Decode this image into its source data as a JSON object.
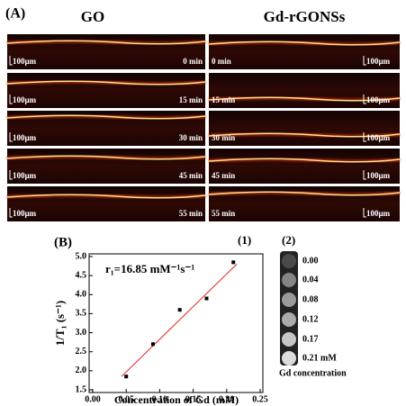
{
  "panel_a": {
    "label": "(A)",
    "scale_bar": "100µm",
    "columns": [
      {
        "title": "GO",
        "times": [
          "0 min",
          "15 min",
          "30 min",
          "45 min",
          "55 min"
        ]
      },
      {
        "title": "Gd-rGONSs",
        "times": [
          "0 min",
          "15 min",
          "30 min",
          "45 min",
          "55 min"
        ]
      }
    ]
  },
  "chart_data": {
    "type": "scatter",
    "label": "(B)",
    "sublabel": "(1)",
    "annotation": "r₁=16.85 mM⁻¹s⁻¹",
    "x_label": "Concentration of Gd (mM)",
    "y_label": "1/T₁ (s⁻¹)",
    "x": [
      0.05,
      0.09,
      0.13,
      0.17,
      0.21
    ],
    "values": [
      1.85,
      2.7,
      3.6,
      3.9,
      4.85
    ],
    "color": "#000000",
    "fit": {
      "x": [
        0.043,
        0.215
      ],
      "values": [
        1.85,
        4.8
      ],
      "color": "#e02020"
    },
    "xlim": [
      0,
      0.25
    ],
    "ylim": [
      1.5,
      5.0
    ],
    "xticks": [
      {
        "value": 0,
        "label": "0.00"
      },
      {
        "value": 0.05,
        "label": "0.05"
      },
      {
        "value": 0.1,
        "label": "0.10"
      },
      {
        "value": 0.15,
        "label": "0.15"
      },
      {
        "value": 0.2,
        "label": "0.20"
      },
      {
        "value": 0.25,
        "label": "0.25"
      }
    ],
    "yticks": [
      1.5,
      {
        "value": 2,
        "label": "2.0"
      },
      2.5,
      {
        "value": 3,
        "label": "3.0"
      },
      3.5,
      {
        "value": 4,
        "label": "4.0"
      },
      4.5,
      {
        "value": 5,
        "label": "5.0"
      }
    ]
  },
  "panel_2": {
    "label": "(2)",
    "labels": [
      "0.00",
      "0.04",
      "0.08",
      "0.12",
      "0.17",
      "0.21 mM"
    ],
    "colors": [
      "#4a4a4a",
      "#858585",
      "#9a9a9a",
      "#ababab",
      "#c6c6c6",
      "#dcdcdc"
    ],
    "caption": "Gd concentration"
  }
}
